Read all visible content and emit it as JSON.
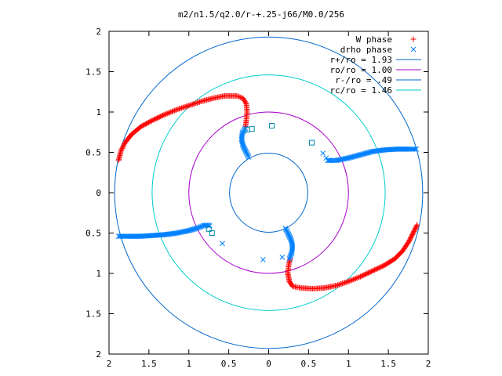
{
  "chart_data": {
    "type": "scatter",
    "title": "m2/n1.5/q2.0/r-+.25-j66/M0.0/256",
    "xlabel": "",
    "ylabel": "",
    "xlim": [
      -2,
      2
    ],
    "ylim": [
      -2,
      2
    ],
    "x_ticks": [
      -2,
      -1.5,
      -1,
      -0.5,
      0,
      0.5,
      1,
      1.5,
      2
    ],
    "y_ticks": [
      -2,
      -1.5,
      -1,
      -0.5,
      0,
      0.5,
      1,
      1.5,
      2
    ],
    "x_tick_labels": [
      "2",
      "1.5",
      "1",
      "0.5",
      "0",
      "0.5",
      "1",
      "1.5",
      "2"
    ],
    "y_tick_labels": [
      "2",
      "1.5",
      "1",
      "0.5",
      "0",
      "0.5",
      "1",
      "1.5",
      "2"
    ],
    "grid": false,
    "legend_position": "top-right",
    "series": [
      {
        "name": "W phase",
        "marker": "plus",
        "color": "#ff0000",
        "segments": [
          [
            [
              -1.88,
              0.4
            ],
            [
              -1.85,
              0.52
            ],
            [
              -1.8,
              0.62
            ],
            [
              -1.72,
              0.72
            ],
            [
              -1.6,
              0.82
            ],
            [
              -1.45,
              0.9
            ],
            [
              -1.3,
              0.97
            ],
            [
              -1.15,
              1.03
            ],
            [
              -1.0,
              1.08
            ],
            [
              -0.85,
              1.13
            ],
            [
              -0.7,
              1.17
            ],
            [
              -0.55,
              1.2
            ],
            [
              -0.4,
              1.2
            ],
            [
              -0.32,
              1.17
            ],
            [
              -0.28,
              1.1
            ],
            [
              -0.27,
              1.0
            ],
            [
              -0.28,
              0.9
            ],
            [
              -0.29,
              0.82
            ]
          ],
          [
            [
              0.27,
              -0.82
            ],
            [
              0.25,
              -0.9
            ],
            [
              0.24,
              -1.0
            ],
            [
              0.26,
              -1.1
            ],
            [
              0.3,
              -1.16
            ],
            [
              0.4,
              -1.18
            ],
            [
              0.55,
              -1.19
            ],
            [
              0.7,
              -1.18
            ],
            [
              0.85,
              -1.15
            ],
            [
              1.0,
              -1.1
            ],
            [
              1.15,
              -1.04
            ],
            [
              1.3,
              -0.97
            ],
            [
              1.45,
              -0.9
            ],
            [
              1.58,
              -0.82
            ],
            [
              1.68,
              -0.72
            ],
            [
              1.76,
              -0.6
            ],
            [
              1.82,
              -0.48
            ],
            [
              1.86,
              -0.4
            ]
          ]
        ]
      },
      {
        "name": "drho phase",
        "marker": "cross",
        "color": "#0080ff",
        "segments": [
          [
            [
              -1.88,
              -0.54
            ],
            [
              -1.75,
              -0.54
            ],
            [
              -1.6,
              -0.54
            ],
            [
              -1.45,
              -0.53
            ],
            [
              -1.3,
              -0.52
            ],
            [
              -1.15,
              -0.5
            ],
            [
              -1.0,
              -0.47
            ],
            [
              -0.9,
              -0.44
            ],
            [
              -0.82,
              -0.41
            ],
            [
              -0.78,
              -0.4
            ],
            [
              -0.74,
              -0.41
            ]
          ],
          [
            [
              -0.25,
              0.44
            ],
            [
              -0.28,
              0.5
            ],
            [
              -0.32,
              0.58
            ],
            [
              -0.34,
              0.66
            ],
            [
              -0.33,
              0.74
            ],
            [
              -0.29,
              0.8
            ]
          ],
          [
            [
              0.74,
              0.4
            ],
            [
              0.78,
              0.4
            ],
            [
              0.85,
              0.4
            ],
            [
              1.0,
              0.43
            ],
            [
              1.15,
              0.47
            ],
            [
              1.3,
              0.51
            ],
            [
              1.45,
              0.53
            ],
            [
              1.6,
              0.54
            ],
            [
              1.75,
              0.54
            ],
            [
              1.85,
              0.54
            ]
          ],
          [
            [
              0.21,
              -0.44
            ],
            [
              0.24,
              -0.5
            ],
            [
              0.28,
              -0.58
            ],
            [
              0.3,
              -0.66
            ],
            [
              0.29,
              -0.74
            ],
            [
              0.26,
              -0.82
            ]
          ]
        ],
        "scattered": [
          [
            -0.58,
            -0.63
          ],
          [
            -0.07,
            -0.83
          ],
          [
            0.17,
            -0.8
          ],
          [
            0.68,
            0.49
          ],
          [
            0.72,
            0.43
          ]
        ]
      },
      {
        "name": "r+/ro = 1.93",
        "type": "circle",
        "radius": 1.93,
        "color": "#0066cc"
      },
      {
        "name": "ro/ro = 1.00",
        "type": "circle",
        "radius": 1.0,
        "color": "#aa00cc"
      },
      {
        "name": "r-/ro = .49",
        "type": "circle",
        "radius": 0.49,
        "color": "#0066cc"
      },
      {
        "name": "rc/ro = 1.46",
        "type": "circle",
        "radius": 1.46,
        "color": "#00cccc"
      }
    ],
    "square_markers": {
      "color": "#0088aa",
      "points": [
        [
          -0.27,
          0.78
        ],
        [
          -0.21,
          0.79
        ],
        [
          0.04,
          0.83
        ],
        [
          0.54,
          0.62
        ],
        [
          -0.75,
          -0.45
        ],
        [
          -0.71,
          -0.5
        ]
      ]
    }
  }
}
